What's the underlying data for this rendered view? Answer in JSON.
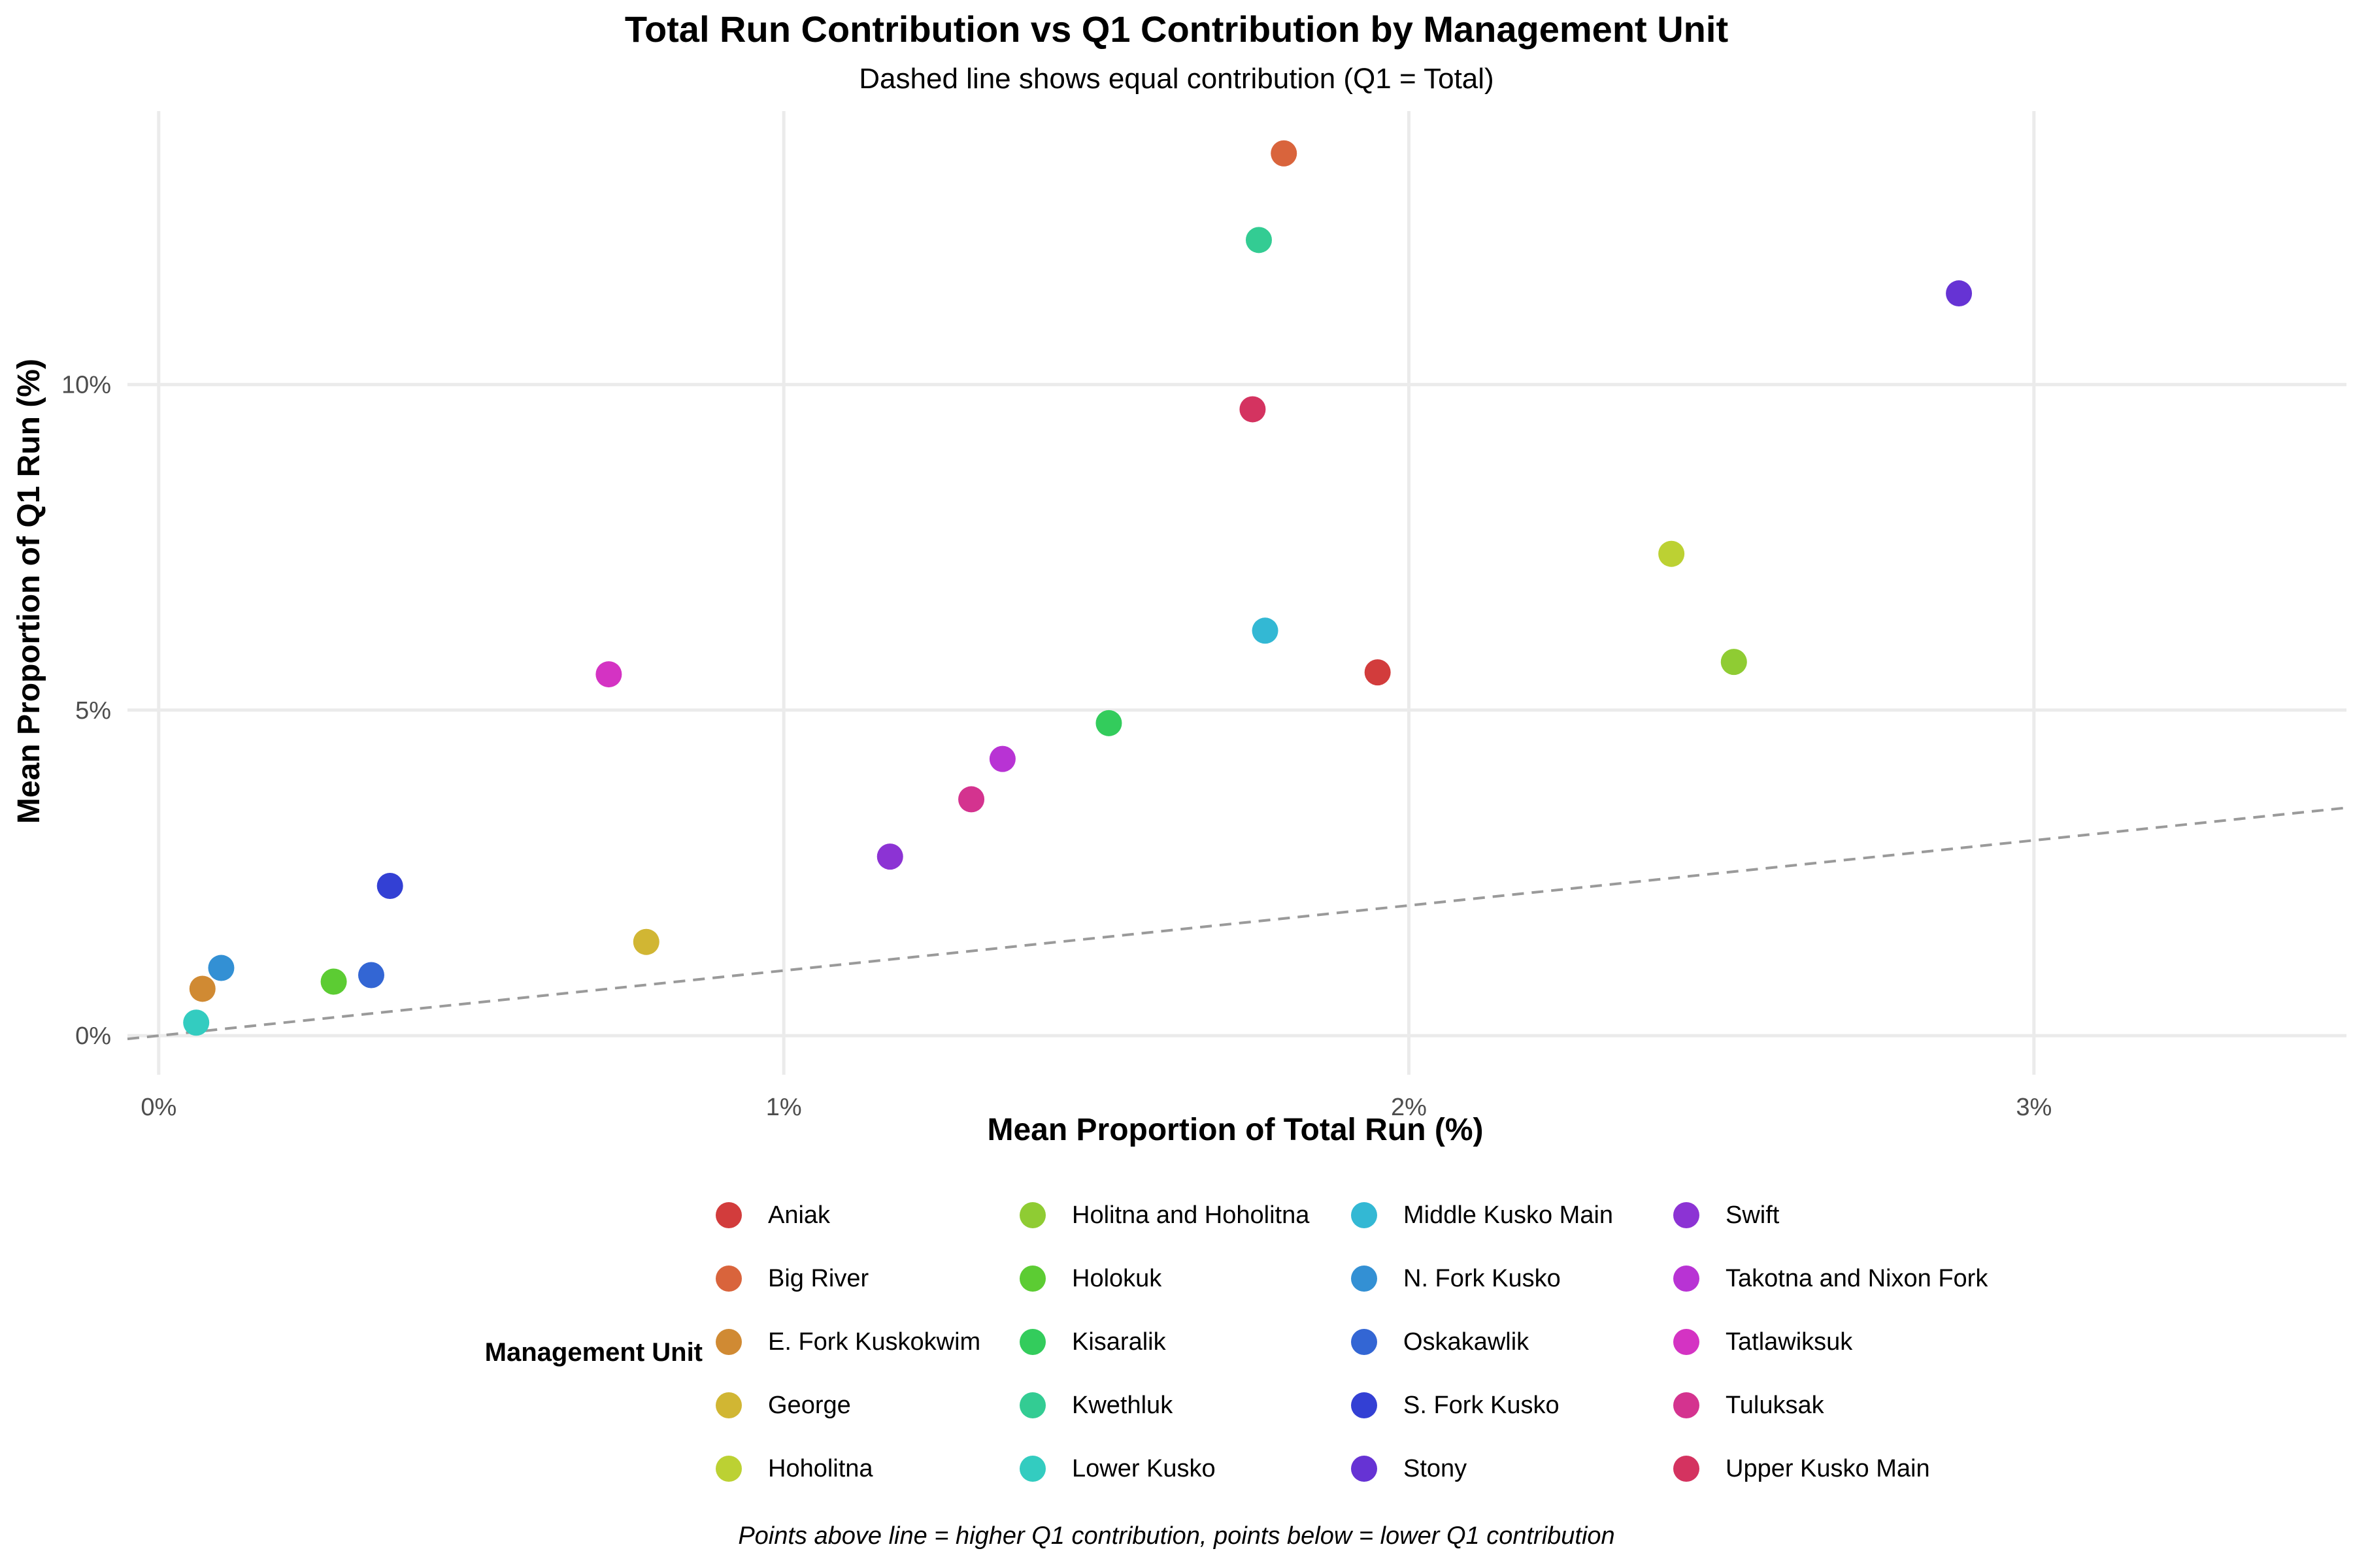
{
  "title": "Total Run Contribution vs Q1 Contribution by Management Unit",
  "subtitle": "Dashed line shows equal contribution (Q1 = Total)",
  "caption": "Points above line = higher Q1 contribution, points below = lower Q1 contribution",
  "chart_data": {
    "type": "scatter",
    "xlabel": "Mean Proportion of Total Run (%)",
    "ylabel": "Mean Proportion of Q1 Run (%)",
    "xlim": [
      -0.05,
      3.5
    ],
    "ylim": [
      -0.6,
      14.2
    ],
    "x_ticks": [
      0,
      1,
      2,
      3
    ],
    "y_ticks": [
      0,
      5,
      10
    ],
    "x_tick_labels": [
      "0%",
      "1%",
      "2%",
      "3%"
    ],
    "y_tick_labels": [
      "0%",
      "5%",
      "10%"
    ],
    "grid": true,
    "reference_line": {
      "style": "dashed",
      "slope": 1,
      "intercept": 0,
      "color": "#9a9a9a"
    },
    "legend_title": "Management Unit",
    "legend_position": "bottom",
    "series": [
      {
        "name": "Aniak",
        "color": "#d23c3c",
        "x": 1.95,
        "y": 5.58
      },
      {
        "name": "Big River",
        "color": "#d9643c",
        "x": 1.8,
        "y": 13.55
      },
      {
        "name": "E. Fork Kuskokwim",
        "color": "#d08a33",
        "x": 0.07,
        "y": 0.72
      },
      {
        "name": "George",
        "color": "#d1b633",
        "x": 0.78,
        "y": 1.44
      },
      {
        "name": "Hoholitna",
        "color": "#bcd133",
        "x": 2.42,
        "y": 7.4
      },
      {
        "name": "Holitna and Hoholitna",
        "color": "#8fcc33",
        "x": 2.52,
        "y": 5.74
      },
      {
        "name": "Holokuk",
        "color": "#5ccc33",
        "x": 0.28,
        "y": 0.83
      },
      {
        "name": "Kisaralik",
        "color": "#33cc5c",
        "x": 1.52,
        "y": 4.8
      },
      {
        "name": "Kwethluk",
        "color": "#33cc93",
        "x": 1.76,
        "y": 12.22
      },
      {
        "name": "Lower Kusko",
        "color": "#33ccc0",
        "x": 0.06,
        "y": 0.2
      },
      {
        "name": "Middle Kusko Main",
        "color": "#33b8d4",
        "x": 1.77,
        "y": 6.22
      },
      {
        "name": "N. Fork Kusko",
        "color": "#3390d4",
        "x": 0.1,
        "y": 1.04
      },
      {
        "name": "Oskakawlik",
        "color": "#3366d4",
        "x": 0.34,
        "y": 0.93
      },
      {
        "name": "S. Fork Kusko",
        "color": "#3340d4",
        "x": 0.37,
        "y": 2.3
      },
      {
        "name": "Stony",
        "color": "#6633d4",
        "x": 2.88,
        "y": 11.4
      },
      {
        "name": "Swift",
        "color": "#8c33d4",
        "x": 1.17,
        "y": 2.75
      },
      {
        "name": "Takotna and Nixon Fork",
        "color": "#b833d4",
        "x": 1.35,
        "y": 4.25
      },
      {
        "name": "Tatlawiksuk",
        "color": "#d433c3",
        "x": 0.72,
        "y": 5.55
      },
      {
        "name": "Tuluksak",
        "color": "#d4338f",
        "x": 1.3,
        "y": 3.63
      },
      {
        "name": "Upper Kusko Main",
        "color": "#d43360",
        "x": 1.75,
        "y": 9.62
      }
    ]
  }
}
